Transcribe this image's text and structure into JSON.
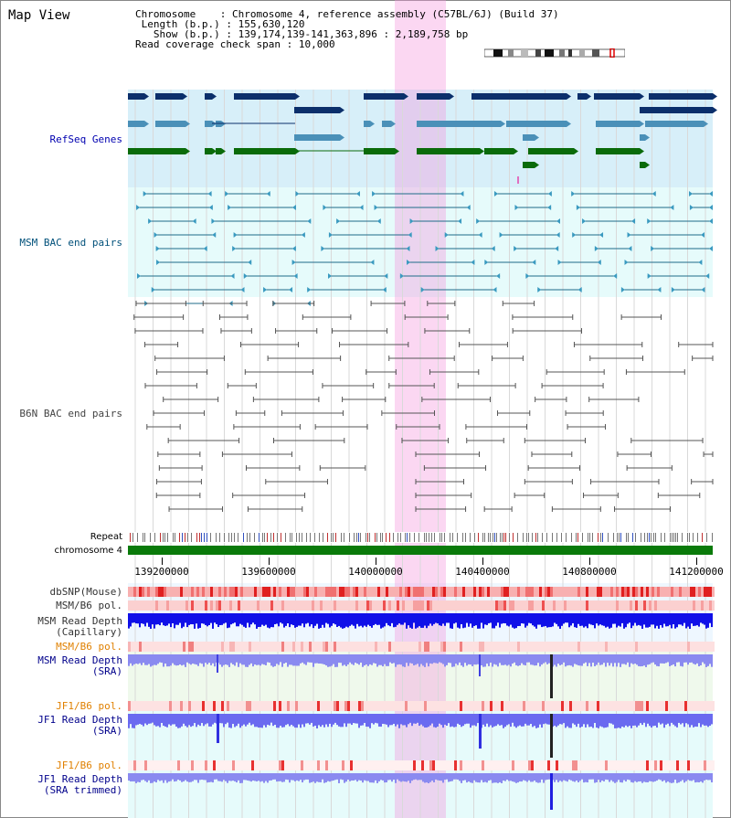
{
  "view": {
    "title": "Map View"
  },
  "info": {
    "chromosome_label": "Chromosome",
    "chromosome_value": "Chromosome 4, reference assembly (C57BL/6J) (Build 37)",
    "length_label": "Length (b.p.)",
    "length_value": "155,630,120",
    "show_label": "Show (b.p.)",
    "show_value": "139,174,139-141,363,896 : 2,189,758 bp",
    "coverage_label": "Read coverage check span",
    "coverage_value": "10,000"
  },
  "tracks": {
    "refseq": "RefSeq Genes",
    "msm_bac": "MSM BAC end pairs",
    "b6n_bac": "B6N BAC end pairs",
    "repeat": "Repeat",
    "chromosome": "chromosome 4",
    "dbsnp": "dbSNP(Mouse)",
    "msm_b6_pol": "MSM/B6 pol.",
    "msm_depth_cap_1": "MSM Read Depth",
    "msm_depth_cap_2": "(Capillary)",
    "msm_b6_pol2": "MSM/B6 pol.",
    "msm_depth_sra_1": "MSM Read Depth",
    "msm_depth_sra_2": "(SRA)",
    "jf1_b6_pol": "JF1/B6 pol.",
    "jf1_depth_sra_1": "JF1 Read Depth",
    "jf1_depth_sra_2": "(SRA)",
    "jf1_b6_pol2": "JF1/B6 pol.",
    "jf1_depth_trim_1": "JF1 Read Depth",
    "jf1_depth_trim_2": "(SRA trimmed)"
  },
  "axis": {
    "ticks": [
      "139200000",
      "139600000",
      "140000000",
      "140400000",
      "140800000",
      "141200000"
    ]
  },
  "colors": {
    "refseq_bg": "#d6eef8",
    "msm_bg": "#e8fafa",
    "highlight": "#f7c9ec",
    "gene_navy": "#0b2f6b",
    "gene_steel": "#4a90b8",
    "gene_green": "#0a6b0a",
    "chromosome_green": "#0a7a0a"
  }
}
